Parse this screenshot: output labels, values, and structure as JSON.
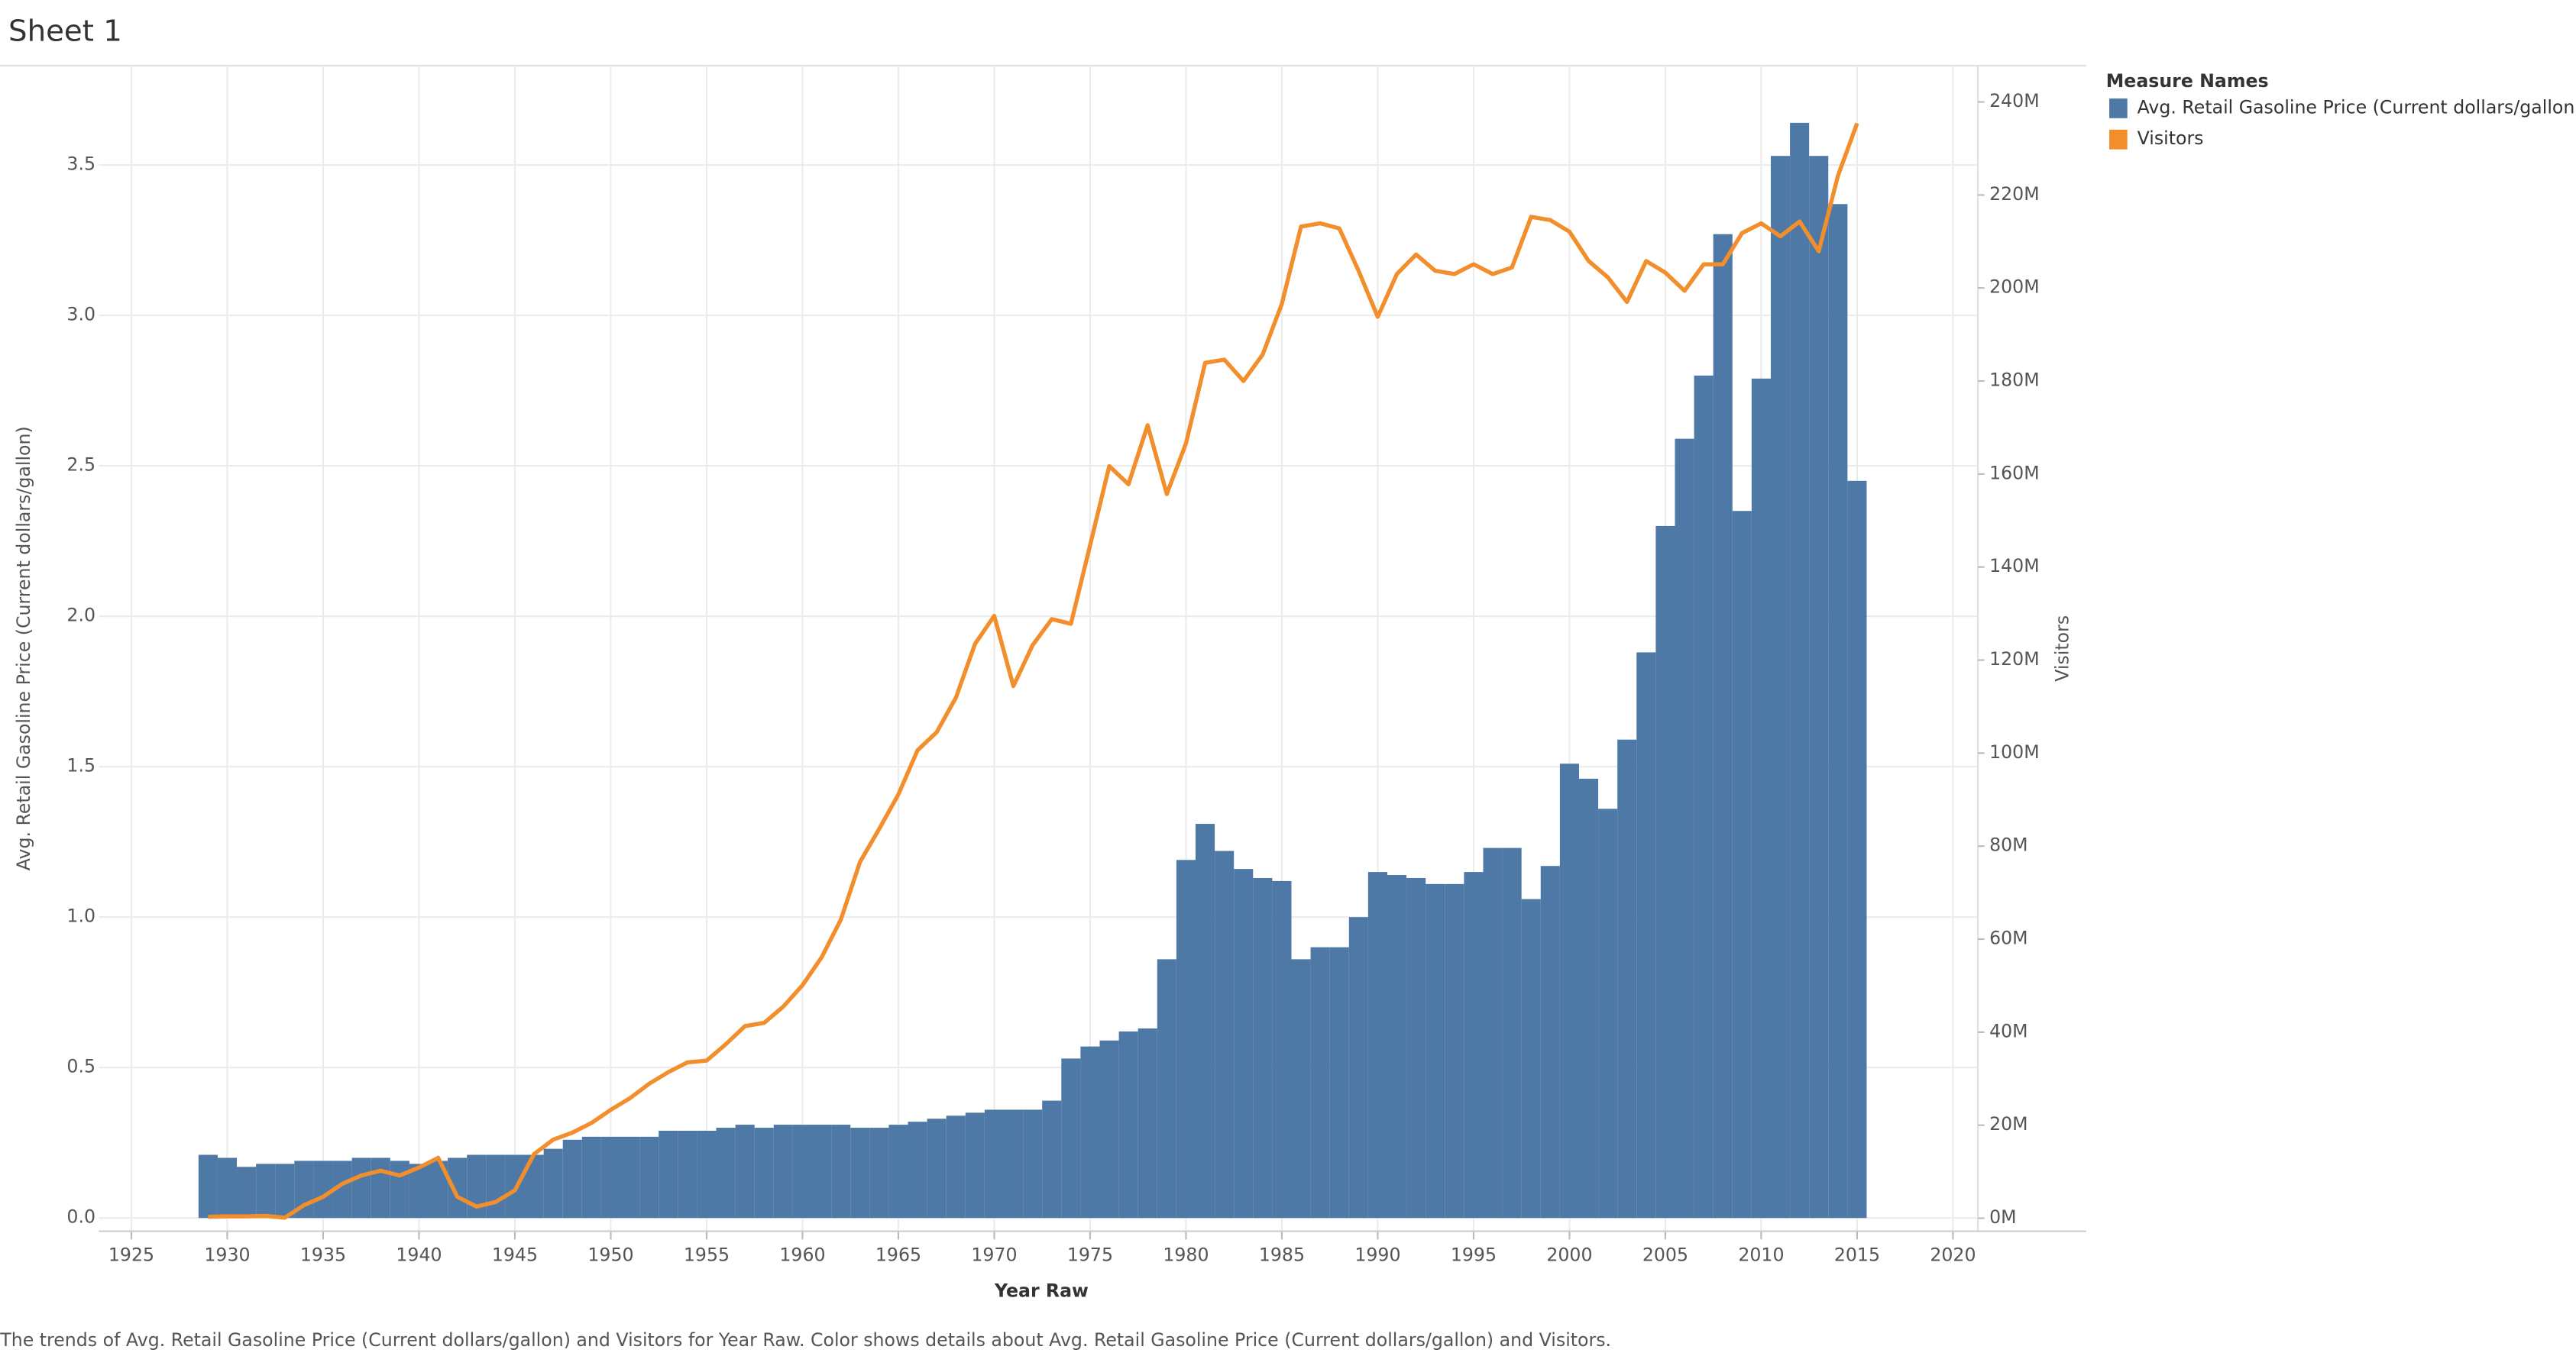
{
  "chart_data": {
    "type": "combo",
    "title": "Sheet 1",
    "x_label": "Year Raw",
    "y_label": "Avg. Retail Gasoline Price  (Current dollars/gallon)",
    "y2_label": "Visitors",
    "legend_title": "Measure Names",
    "caption": "The trends of Avg. Retail Gasoline Price  (Current dollars/gallon) and Visitors for Year Raw.  Color shows details about Avg. Retail Gasoline Price  (Current dollars/gallon) and Visitors.",
    "grid": true,
    "legend": "right",
    "x": [
      1929,
      1930,
      1931,
      1932,
      1933,
      1934,
      1935,
      1936,
      1937,
      1938,
      1939,
      1940,
      1941,
      1942,
      1943,
      1944,
      1945,
      1946,
      1947,
      1948,
      1949,
      1950,
      1951,
      1952,
      1953,
      1954,
      1955,
      1956,
      1957,
      1958,
      1959,
      1960,
      1961,
      1962,
      1963,
      1964,
      1965,
      1966,
      1967,
      1968,
      1969,
      1970,
      1971,
      1972,
      1973,
      1974,
      1975,
      1976,
      1977,
      1978,
      1979,
      1980,
      1981,
      1982,
      1983,
      1984,
      1985,
      1986,
      1987,
      1988,
      1989,
      1990,
      1991,
      1992,
      1993,
      1994,
      1995,
      1996,
      1997,
      1998,
      1999,
      2000,
      2001,
      2002,
      2003,
      2004,
      2005,
      2006,
      2007,
      2008,
      2009,
      2010,
      2011,
      2012,
      2013,
      2014,
      2015
    ],
    "xlim": [
      1923.3,
      2021.3
    ],
    "xticks": [
      1925,
      1930,
      1935,
      1940,
      1945,
      1950,
      1955,
      1960,
      1965,
      1970,
      1975,
      1980,
      1985,
      1990,
      1995,
      2000,
      2005,
      2010,
      2015,
      2020
    ],
    "ylim": [
      -0.044,
      3.83
    ],
    "yticks": [
      {
        "value": 0,
        "label": "0.0"
      },
      0.5,
      {
        "value": 1,
        "label": "1.0"
      },
      1.5,
      {
        "value": 2,
        "label": "2.0"
      },
      2.5,
      {
        "value": 3,
        "label": "3.0"
      },
      3.5
    ],
    "y2lim": [
      -2800000,
      247800000
    ],
    "y2ticks": [
      {
        "value": 0,
        "label": "0M"
      },
      {
        "value": 20000000,
        "label": "20M"
      },
      {
        "value": 40000000,
        "label": "40M"
      },
      {
        "value": 60000000,
        "label": "60M"
      },
      {
        "value": 80000000,
        "label": "80M"
      },
      {
        "value": 100000000,
        "label": "100M"
      },
      {
        "value": 120000000,
        "label": "120M"
      },
      {
        "value": 140000000,
        "label": "140M"
      },
      {
        "value": 160000000,
        "label": "160M"
      },
      {
        "value": 180000000,
        "label": "180M"
      },
      {
        "value": 200000000,
        "label": "200M"
      },
      {
        "value": 220000000,
        "label": "220M"
      },
      {
        "value": 240000000,
        "label": "240M"
      }
    ],
    "series": [
      {
        "name": "Avg. Retail Gasoline Price  (Current dollars/gallon)",
        "color": "#4e79a7",
        "type": "bar",
        "values": [
          0.21,
          0.2,
          0.17,
          0.18,
          0.18,
          0.19,
          0.19,
          0.19,
          0.2,
          0.2,
          0.19,
          0.18,
          0.19,
          0.2,
          0.21,
          0.21,
          0.21,
          0.21,
          0.23,
          0.26,
          0.27,
          0.27,
          0.27,
          0.27,
          0.29,
          0.29,
          0.29,
          0.3,
          0.31,
          0.3,
          0.31,
          0.31,
          0.31,
          0.31,
          0.3,
          0.3,
          0.31,
          0.32,
          0.33,
          0.34,
          0.35,
          0.36,
          0.36,
          0.36,
          0.39,
          0.53,
          0.57,
          0.59,
          0.62,
          0.63,
          0.86,
          1.19,
          1.31,
          1.22,
          1.16,
          1.13,
          1.12,
          0.86,
          0.9,
          0.9,
          1.0,
          1.15,
          1.14,
          1.13,
          1.11,
          1.11,
          1.15,
          1.23,
          1.23,
          1.06,
          1.17,
          1.51,
          1.46,
          1.36,
          1.59,
          1.88,
          2.3,
          2.59,
          2.8,
          3.27,
          2.35,
          2.79,
          3.53,
          3.64,
          3.53,
          3.37,
          2.45
        ]
      },
      {
        "name": "Visitors",
        "color": "#f28e2b",
        "type": "line",
        "axis": "y2",
        "values": [
          300000,
          400000,
          400000,
          500000,
          100000,
          2800000,
          4600000,
          7400000,
          9200000,
          10200000,
          9200000,
          10900000,
          13000000,
          4600000,
          2500000,
          3500000,
          6000000,
          13800000,
          16900000,
          18400000,
          20500000,
          23300000,
          25800000,
          28900000,
          31400000,
          33500000,
          33900000,
          37400000,
          41300000,
          42000000,
          45500000,
          50100000,
          56100000,
          64200000,
          76600000,
          83700000,
          91100000,
          100600000,
          104500000,
          111900000,
          123500000,
          129500000,
          114400000,
          123200000,
          128800000,
          127800000,
          144700000,
          161700000,
          157800000,
          170500000,
          155700000,
          166600000,
          183900000,
          184600000,
          180000000,
          185700000,
          196600000,
          213200000,
          213900000,
          212800000,
          203700000,
          193800000,
          203000000,
          207200000,
          203700000,
          203000000,
          205100000,
          203000000,
          204400000,
          215300000,
          214600000,
          212100000,
          205800000,
          202300000,
          197000000,
          205800000,
          203300000,
          199400000,
          205100000,
          205100000,
          211800000,
          213900000,
          211100000,
          214300000,
          207900000,
          224100000,
          235400000
        ]
      }
    ]
  }
}
